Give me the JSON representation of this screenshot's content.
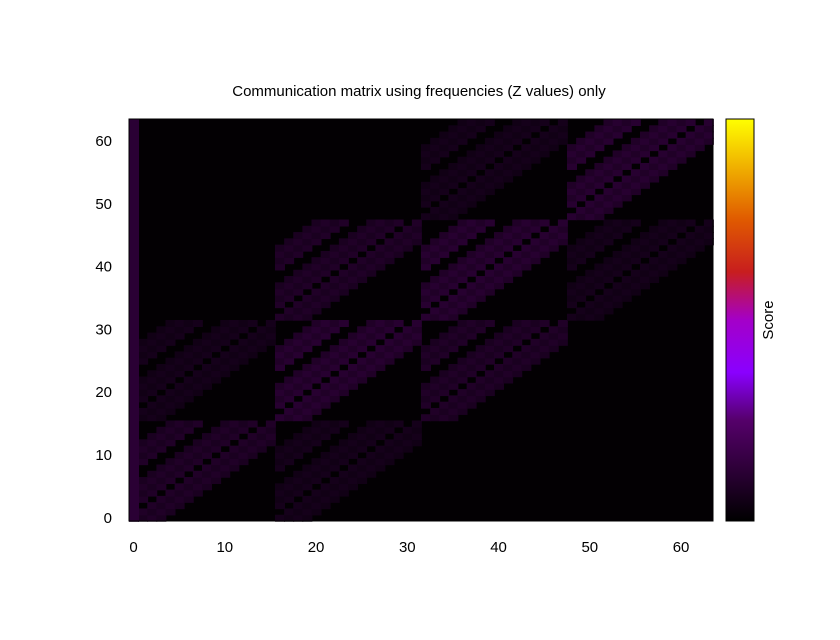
{
  "chart_data": {
    "type": "heatmap",
    "title": "Communication matrix using frequencies (Z values) only",
    "xlabel": "",
    "ylabel": "",
    "colorbar_label": "Score",
    "xlim": [
      0,
      63
    ],
    "ylim": [
      0,
      63
    ],
    "x_ticks": [
      0,
      10,
      20,
      30,
      40,
      50,
      60
    ],
    "y_ticks": [
      0,
      10,
      20,
      30,
      40,
      50,
      60
    ],
    "x_tick_labels": [
      "0",
      "10",
      "20",
      "30",
      "40",
      "50",
      "60"
    ],
    "y_tick_labels": [
      "0",
      "10",
      "20",
      "30",
      "40",
      "50",
      "60"
    ],
    "z_range": [
      0,
      1
    ],
    "grid": false,
    "colormap": [
      "#000000",
      "#2a0034",
      "#55006a",
      "#8a00d4",
      "#a400c8",
      "#c81e1e",
      "#e05a00",
      "#f0b000",
      "#ffff00"
    ],
    "background_color": "#030003",
    "column_0_value": 0.12,
    "block_values": {
      "faint": 0.06,
      "medium": 0.09,
      "strong": 0.11
    }
  }
}
